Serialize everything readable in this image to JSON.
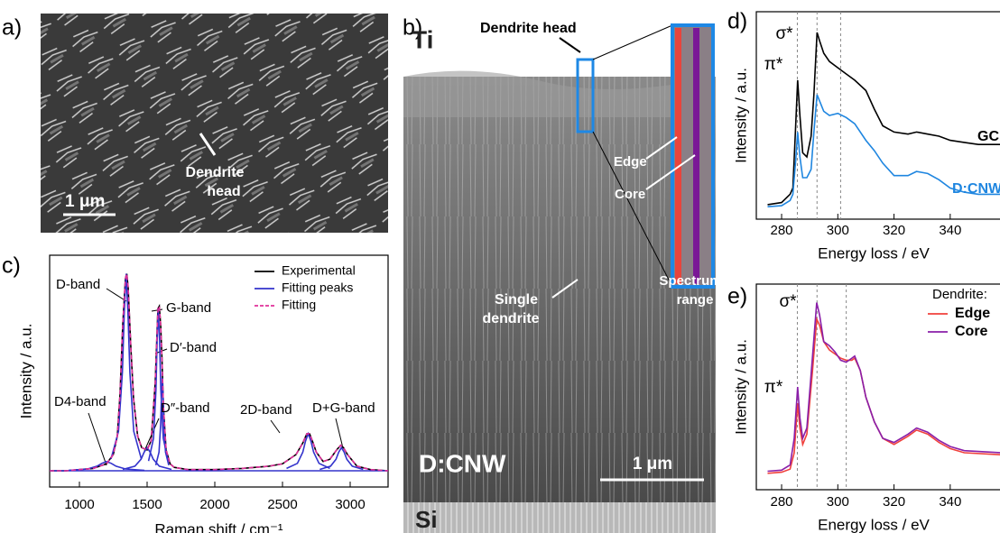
{
  "panels": {
    "a": {
      "label": "a)",
      "dendrite_head": [
        "Dendrite",
        "head"
      ],
      "scale": "1 μm"
    },
    "b": {
      "label": "b)",
      "top": "Ti",
      "dendrite_head": "Dendrite head",
      "edge": "Edge",
      "core": "Core",
      "spectrum_range": [
        "Spectrum",
        "range"
      ],
      "single_dendrite": [
        "Single",
        "dendrite"
      ],
      "film": "D:CNW",
      "scale": "1 μm",
      "substrate": "Si"
    }
  },
  "chart_data": [
    {
      "type": "line",
      "panel_label": "c)",
      "x_label": "Raman shift / cm⁻¹",
      "y_label": "Intensity / a.u.",
      "xlim": [
        780,
        3280
      ],
      "ylim": [
        0,
        100
      ],
      "xticks": [
        1000,
        1500,
        2000,
        2500,
        3000
      ],
      "legend": "upper right",
      "series": [
        {
          "name": "Experimental",
          "color": "#000000",
          "dash": false,
          "x": [
            780,
            900,
            1000,
            1100,
            1150,
            1200,
            1250,
            1280,
            1300,
            1320,
            1340,
            1350,
            1360,
            1380,
            1400,
            1430,
            1460,
            1500,
            1530,
            1560,
            1580,
            1590,
            1600,
            1610,
            1620,
            1640,
            1670,
            1700,
            1800,
            2000,
            2200,
            2400,
            2500,
            2600,
            2650,
            2680,
            2700,
            2720,
            2750,
            2800,
            2850,
            2900,
            2930,
            2950,
            2980,
            3050,
            3150,
            3280
          ],
          "values": [
            7,
            7,
            7.5,
            8,
            9,
            10,
            14,
            22,
            40,
            70,
            90,
            92,
            86,
            60,
            38,
            22,
            17,
            16,
            20,
            45,
            77,
            78,
            70,
            55,
            35,
            16,
            10,
            8.5,
            7.5,
            7.5,
            8,
            9,
            10,
            14,
            19,
            23,
            23,
            20,
            15,
            11,
            12,
            16,
            18,
            17,
            14,
            9,
            7.5,
            7
          ]
        },
        {
          "name": "Fitting peaks",
          "color": "#3333cc",
          "dash": false,
          "curves": [
            {
              "x": [
                780,
                3280
              ],
              "values": [
                7,
                7
              ]
            },
            {
              "x": [
                920,
                1060,
                1130,
                1165,
                1200,
                1235,
                1270,
                1340,
                1480
              ],
              "values": [
                7.2,
                7.8,
                9,
                10.2,
                11,
                10.2,
                9,
                7.8,
                7.2
              ]
            },
            {
              "x": [
                1233,
                1289,
                1317,
                1331,
                1345,
                1359,
                1373,
                1401,
                1457
              ],
              "values": [
                12.1,
                24,
                49.5,
                75,
                92,
                75,
                49.5,
                24,
                12.1
              ]
            },
            {
              "x": [
                1320,
                1410,
                1455,
                1478,
                1500,
                1523,
                1545,
                1590,
                1680
              ],
              "values": [
                7.6,
                9,
                12,
                15,
                17,
                15,
                12,
                9,
                7.6
              ]
            },
            {
              "x": [
                1511,
                1547,
                1565,
                1574,
                1583,
                1592,
                1601,
                1619,
                1655
              ],
              "values": [
                11.2,
                21,
                42,
                63,
                77,
                63,
                42,
                21,
                11.2
              ]
            },
            {
              "x": [
                1564,
                1588,
                1600,
                1606,
                1612,
                1618,
                1624,
                1636,
                1660
              ],
              "values": [
                9.4,
                15,
                27,
                39,
                47,
                39,
                27,
                15,
                9.4
              ]
            },
            {
              "x": [
                2530,
                2610,
                2650,
                2670,
                2690,
                2710,
                2730,
                2770,
                2850
              ],
              "values": [
                8,
                10.2,
                15,
                19.8,
                23,
                19.8,
                15,
                10.2,
                8
              ]
            },
            {
              "x": [
                2775,
                2855,
                2895,
                2915,
                2935,
                2955,
                2975,
                3015,
                3095
              ],
              "values": [
                7.6,
                9,
                12,
                15,
                17,
                15,
                12,
                9,
                7.6
              ]
            }
          ]
        },
        {
          "name": "Fitting",
          "color": "#e0309a",
          "dash": true,
          "x": [
            780,
            900,
            1000,
            1100,
            1150,
            1200,
            1250,
            1280,
            1300,
            1320,
            1340,
            1350,
            1360,
            1380,
            1400,
            1430,
            1460,
            1500,
            1530,
            1560,
            1580,
            1590,
            1600,
            1610,
            1620,
            1640,
            1670,
            1700,
            1800,
            2000,
            2200,
            2400,
            2500,
            2600,
            2650,
            2680,
            2700,
            2720,
            2750,
            2800,
            2850,
            2900,
            2930,
            2950,
            2980,
            3050,
            3150,
            3280
          ],
          "values": [
            7,
            7,
            7.5,
            8,
            9,
            10,
            14,
            22,
            40,
            70,
            90,
            92,
            86,
            60,
            38,
            22,
            17,
            16,
            20,
            45,
            77,
            78,
            70,
            55,
            35,
            16,
            10,
            8.5,
            7.5,
            7.5,
            8,
            9,
            10,
            14,
            19,
            23,
            23,
            20,
            15,
            11,
            12,
            16,
            18,
            17,
            14,
            9,
            7.5,
            7
          ]
        }
      ],
      "annotations": [
        "D-band",
        "G-band",
        "D′-band",
        "D4-band",
        "D″-band",
        "2D-band",
        "D+G-band"
      ]
    },
    {
      "type": "line",
      "panel_label": "d)",
      "x_label": "Energy loss / eV",
      "y_label": "Intensity / a.u.",
      "xlim": [
        271,
        359
      ],
      "ylim": [
        0,
        100
      ],
      "xticks": [
        280,
        300,
        320,
        340
      ],
      "reference_lines": [
        285.6,
        292.6,
        301
      ],
      "x": [
        275,
        280,
        283,
        284,
        285,
        285.7,
        286.5,
        287.5,
        289,
        290.5,
        291.5,
        292.6,
        293.5,
        295,
        297,
        300,
        303,
        306,
        310,
        313,
        316,
        320,
        325,
        328,
        332,
        336,
        340,
        345,
        350,
        358
      ],
      "series": [
        {
          "name": "GC",
          "color": "#000000",
          "values": [
            7,
            8,
            12,
            15,
            45,
            67,
            50,
            32,
            30,
            40,
            60,
            90,
            86,
            80,
            76,
            73,
            70,
            67,
            62,
            53,
            45,
            42,
            41,
            42,
            41,
            40,
            38,
            37,
            36,
            36
          ]
        },
        {
          "name": "D:CNW",
          "color": "#1f86e0",
          "values": [
            6,
            6.5,
            9,
            12,
            28,
            42,
            30,
            20,
            20,
            24,
            42,
            60,
            57,
            52,
            50,
            51,
            49,
            46,
            38,
            33,
            27,
            21,
            21,
            23,
            22,
            19,
            15,
            13,
            12,
            12
          ]
        }
      ],
      "annotations": [
        "σ*",
        "π*"
      ]
    },
    {
      "type": "line",
      "panel_label": "e)",
      "x_label": "Energy loss / eV",
      "y_label": "Intensity / a.u.",
      "xlim": [
        271,
        359
      ],
      "ylim": [
        0,
        100
      ],
      "xticks": [
        280,
        300,
        320,
        340
      ],
      "reference_lines": [
        285.6,
        292.6,
        303
      ],
      "legend": "upper right",
      "legend_title": "Dendrite:",
      "x": [
        275,
        280,
        283,
        284.5,
        285.7,
        286.5,
        287.5,
        289,
        291,
        292.5,
        293.5,
        295,
        297,
        299,
        301,
        303,
        305,
        306,
        308,
        310,
        313,
        316,
        320,
        325,
        328,
        332,
        336,
        340,
        345,
        358
      ],
      "series": [
        {
          "name": "Edge",
          "color": "#f0413c",
          "values": [
            8,
            8.5,
            10,
            18,
            42,
            30,
            22,
            27,
            58,
            83,
            80,
            72,
            68,
            66,
            64,
            63,
            63,
            64,
            58,
            45,
            33,
            25,
            22,
            26,
            29,
            27,
            23,
            20,
            18,
            17
          ]
        },
        {
          "name": "Core",
          "color": "#8a1fa8",
          "values": [
            9,
            9.5,
            12,
            25,
            50,
            35,
            25,
            30,
            65,
            91,
            85,
            72,
            70,
            67,
            63,
            62,
            64,
            65,
            58,
            45,
            33,
            25,
            23,
            27,
            30,
            28,
            24,
            21,
            19,
            18
          ]
        }
      ],
      "annotations": [
        "σ*",
        "π*"
      ]
    }
  ]
}
